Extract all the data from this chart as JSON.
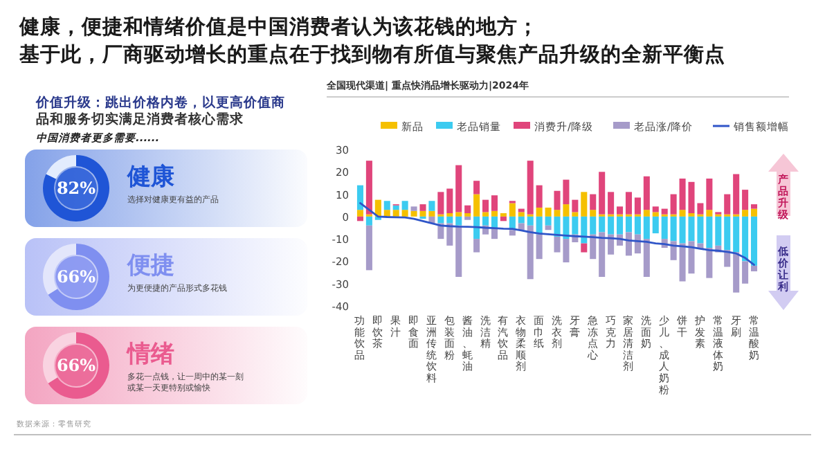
{
  "chart_data": [
    {
      "type": "other",
      "title": "健康，便捷和情绪价值是中国消费者认为该花钱的地方；",
      "subtitle": "基于此，厂商驱动增长的重点在于找到物有所值与聚焦产品升级的全新平衡点",
      "annotations": [
        "价值升级：跳出价格内卷，以更高价值商品和服务切实满足消费者核心需求",
        "中国消费者更多需要......",
        "数据来源：零售研究"
      ]
    },
    {
      "type": "donut",
      "title": "健康",
      "subtitle": "选择对健康更有益的产品",
      "categories": [
        null,
        null
      ],
      "values": [
        82,
        18
      ],
      "colors": [
        "#1f55d6",
        "#e3ecfd"
      ],
      "value_labels": [
        "82%",
        null
      ]
    },
    {
      "type": "donut",
      "title": "便捷",
      "subtitle": "为更便捷的产品形式多花钱",
      "categories": [
        null,
        null
      ],
      "values": [
        66,
        34
      ],
      "colors": [
        "#7f8ff0",
        "#e3e6fb"
      ],
      "value_labels": [
        "66%",
        null
      ]
    },
    {
      "type": "donut",
      "title": "情绪",
      "subtitle": "多花一点钱，让一周中的某一刻或某一天更特别或愉快",
      "categories": [
        null,
        null
      ],
      "values": [
        66,
        34
      ],
      "colors": [
        "#ea5b8f",
        "#f9d3e1"
      ],
      "value_labels": [
        "66%",
        null
      ]
    },
    {
      "type": "bar",
      "stacked": true,
      "title": "全国现代渠道| 重点快消品增长驱动力|2024年",
      "legend": "top",
      "ylim": [
        -40,
        30
      ],
      "yticks": [
        -40,
        -30,
        -20,
        -10,
        0,
        10,
        20,
        30
      ],
      "annotations": [
        "产品升级",
        "低价让利"
      ],
      "categories": [
        "功能饮品",
        null,
        "即饮茶",
        null,
        "果汁",
        null,
        "即食面",
        null,
        "亚洲传统饮料",
        null,
        "包装面粉",
        null,
        "酱油、蚝油",
        null,
        "洗洁精",
        null,
        "有汽饮品",
        null,
        "衣物柔顺剂",
        null,
        "面巾纸",
        null,
        "洗衣剂",
        null,
        "牙膏",
        null,
        "急冻点心",
        null,
        "巧克力",
        null,
        "家居清洁剂",
        null,
        "洗面奶",
        null,
        "少儿、成人奶粉",
        null,
        "饼干",
        null,
        "护发素",
        null,
        "常温液体奶",
        null,
        "牙刷",
        null,
        "常温酸奶"
      ],
      "series": [
        {
          "name": "新品",
          "color": "#f5c000",
          "values": [
            3,
            1,
            7.5,
            3,
            3,
            3,
            2.5,
            2.5,
            2.5,
            1,
            1.5,
            2,
            1.5,
            10,
            2,
            2.5,
            1.5,
            6,
            2,
            1,
            4,
            4,
            3,
            5.5,
            2,
            11,
            3,
            1,
            1,
            1,
            1,
            1,
            3,
            2,
            1,
            1,
            3,
            1.5,
            1,
            3,
            1,
            1,
            1,
            3,
            3.5
          ]
        },
        {
          "name": "老品销量",
          "color": "#3ccbf0",
          "values": [
            11,
            -4,
            -1.5,
            4,
            2,
            4,
            0,
            -1,
            4.5,
            -3,
            -3,
            -4,
            0,
            -10,
            -4,
            -5,
            0,
            -6,
            -3,
            -4,
            -8,
            -4,
            -9,
            -10,
            -8,
            -12,
            -8,
            -7,
            -8,
            -8,
            -7,
            -8,
            -10,
            -7.5,
            -10,
            -11,
            -12,
            -11,
            -12,
            -14,
            -13,
            -15,
            -16,
            -20,
            -22
          ]
        },
        {
          "name": "消费升/降级",
          "color": "#e0457b",
          "values": [
            -2,
            24,
            0,
            0,
            0.5,
            0,
            0,
            3,
            0,
            10,
            11,
            21,
            3.5,
            6,
            5.5,
            7,
            -2,
            1,
            1.5,
            24,
            10,
            0,
            8.5,
            11,
            5.5,
            -4,
            7,
            19,
            10,
            3.5,
            10,
            7.5,
            15,
            2.5,
            2.5,
            9,
            14,
            14,
            5,
            14,
            1,
            9,
            18,
            9,
            2
          ]
        },
        {
          "name": "老品涨/降价",
          "color": "#a69bc9",
          "values": [
            0,
            -20,
            0,
            null,
            0,
            null,
            2,
            0,
            -3,
            -7,
            -10,
            -23,
            -1.5,
            -6,
            -4,
            -5,
            0,
            -2.5,
            -3,
            -24,
            -11,
            -2,
            -7,
            -10.5,
            -3.5,
            0,
            -11,
            -20,
            -9,
            -5,
            -10.5,
            -8.5,
            -17,
            0,
            -4,
            -8.5,
            -17,
            -14.5,
            -2.5,
            -13.5,
            -3,
            -7.5,
            -18,
            -10,
            -2.5
          ]
        },
        {
          "name": "销售额增幅",
          "type": "line",
          "color": "#2f55c8",
          "values": [
            6,
            3,
            0,
            -0.2,
            -0.3,
            -0.4,
            -1,
            -2,
            -3,
            -4,
            -4.3,
            -4.5,
            -4.6,
            -4.7,
            -5,
            -5.2,
            -5.4,
            -5.5,
            -6.2,
            -7,
            -7.6,
            -7.9,
            -8.2,
            -8.5,
            -8.8,
            -9,
            -9.2,
            -9.5,
            -9.7,
            -10,
            -10.7,
            -11,
            -11.3,
            -12,
            -12.3,
            -13,
            -13.3,
            -13.7,
            -14.4,
            -15,
            -15.3,
            -15.8,
            -16.5,
            -18.5,
            -21.6
          ]
        }
      ]
    }
  ]
}
